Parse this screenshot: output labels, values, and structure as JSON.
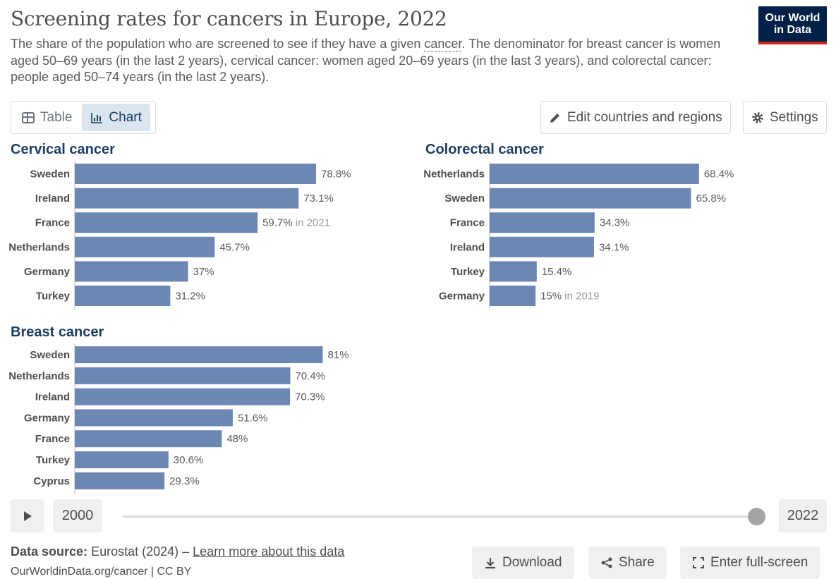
{
  "header": {
    "title": "Screening rates for cancers in Europe, 2022",
    "subtitle_pre": "The share of the population who are screened to see if they have a given ",
    "subtitle_link": "cancer",
    "subtitle_post": ". The denominator for breast cancer is women aged 50–69 years (in the last 2 years), cervical cancer: women aged 20–69 years (in the last 3 years), and colorectal cancer: people aged 50–74 years (in the last 2 years).",
    "logo_line1": "Our World",
    "logo_line2": "in Data"
  },
  "controls": {
    "tab_table": "Table",
    "tab_chart": "Chart",
    "edit_button": "Edit countries and regions",
    "settings_button": "Settings"
  },
  "chart_data": [
    {
      "type": "bar",
      "title": "Cervical cancer",
      "categories": [
        "Sweden",
        "Ireland",
        "France",
        "Netherlands",
        "Germany",
        "Turkey"
      ],
      "values": [
        78.8,
        73.1,
        59.7,
        45.7,
        37,
        31.2
      ],
      "value_labels": [
        "78.8%",
        "73.1%",
        "59.7%",
        "45.7%",
        "37%",
        "31.2%"
      ],
      "notes": [
        "",
        "",
        "in 2021",
        "",
        "",
        ""
      ],
      "unit": "%"
    },
    {
      "type": "bar",
      "title": "Colorectal cancer",
      "categories": [
        "Netherlands",
        "Sweden",
        "France",
        "Ireland",
        "Turkey",
        "Germany"
      ],
      "values": [
        68.4,
        65.8,
        34.3,
        34.1,
        15.4,
        15
      ],
      "value_labels": [
        "68.4%",
        "65.8%",
        "34.3%",
        "34.1%",
        "15.4%",
        "15%"
      ],
      "notes": [
        "",
        "",
        "",
        "",
        "",
        "in 2019"
      ],
      "unit": "%"
    },
    {
      "type": "bar",
      "title": "Breast cancer",
      "categories": [
        "Sweden",
        "Netherlands",
        "Ireland",
        "Germany",
        "France",
        "Turkey",
        "Cyprus"
      ],
      "values": [
        81,
        70.4,
        70.3,
        51.6,
        48,
        30.6,
        29.3
      ],
      "value_labels": [
        "81%",
        "70.4%",
        "70.3%",
        "51.6%",
        "48%",
        "30.6%",
        "29.3%"
      ],
      "notes": [
        "",
        "",
        "",
        "",
        "",
        "",
        ""
      ],
      "unit": "%"
    }
  ],
  "timeline": {
    "start_year": "2000",
    "end_year": "2022",
    "position_fraction": 1.0
  },
  "footer": {
    "source_label": "Data source:",
    "source_text": "Eurostat (2024) –",
    "learn_more": "Learn more about this data",
    "citation": "OurWorldinData.org/cancer | CC BY",
    "download_button": "Download",
    "share_button": "Share",
    "fullscreen_button": "Enter full-screen"
  },
  "colors": {
    "bar": "#6d87b3",
    "accent": "#1d3d63",
    "logo_bg": "#002147",
    "logo_stripe": "#ce261e"
  }
}
